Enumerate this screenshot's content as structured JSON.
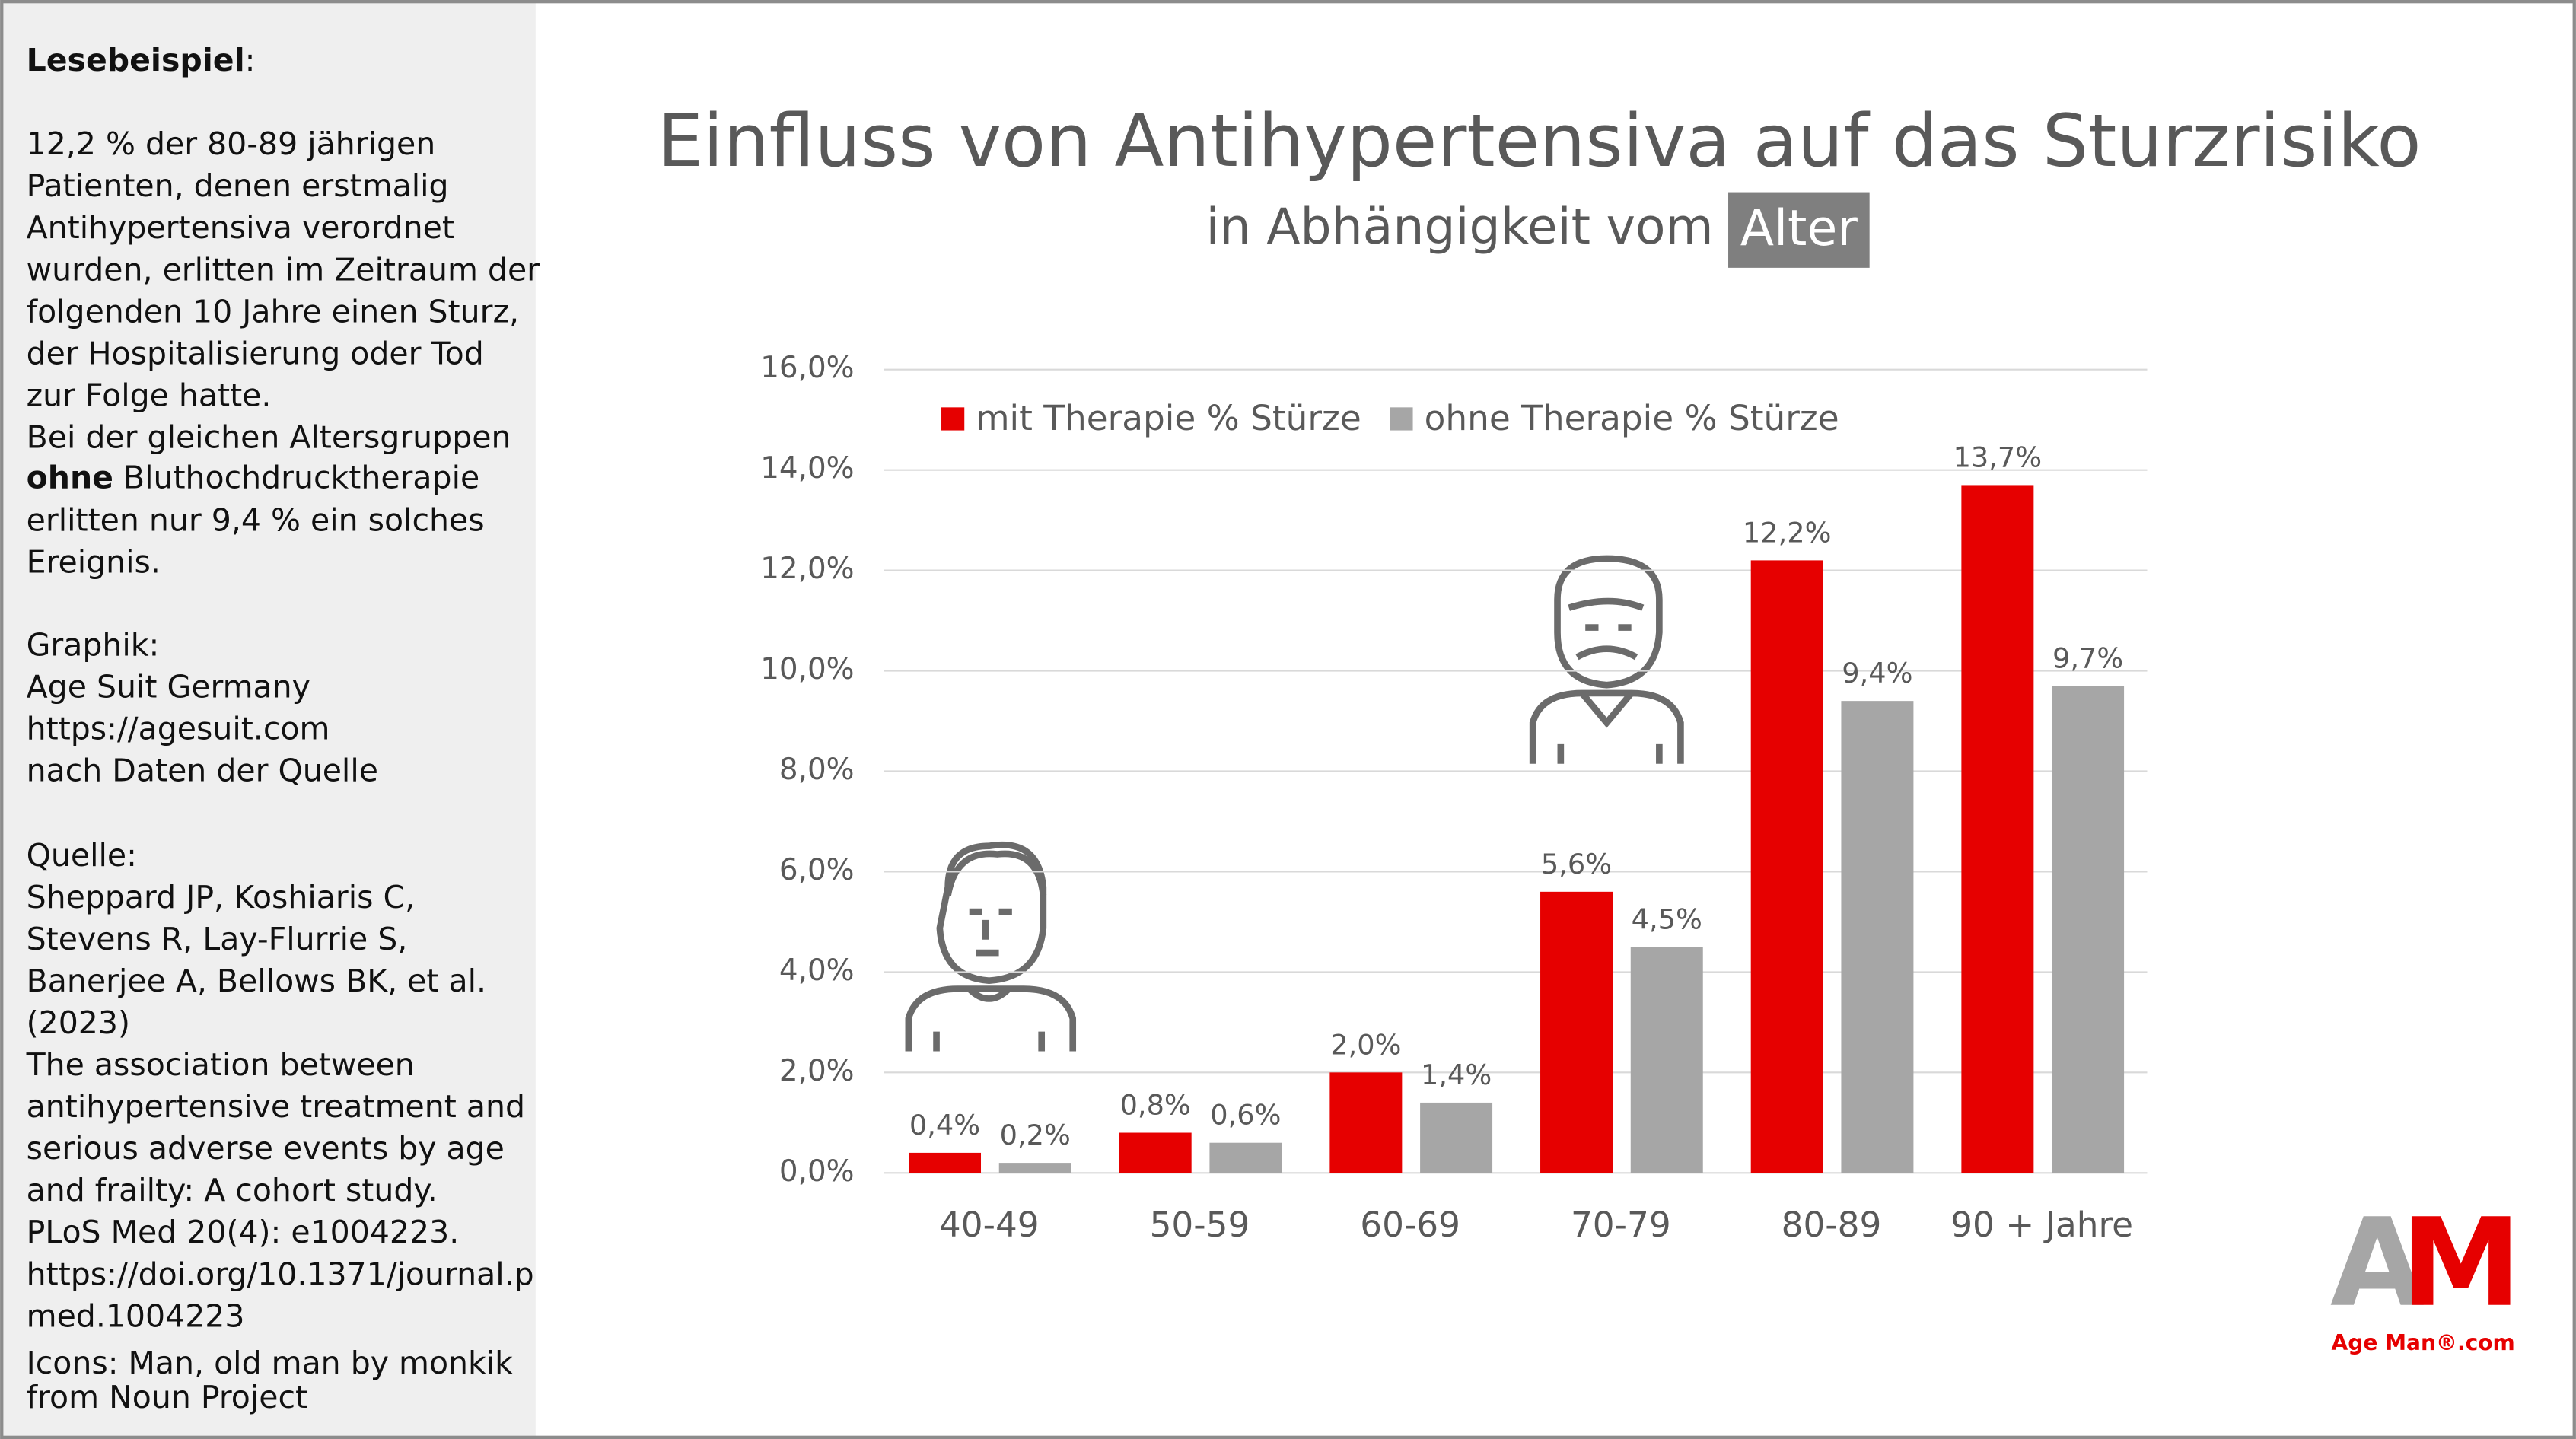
{
  "sidebar": {
    "label": "Lesebeispiel",
    "label_colon": ":",
    "example_lines": [
      "12,2 % der 80-89 jährigen",
      "Patienten, denen erstmalig",
      "Antihypertensiva verordnet",
      "wurden, erlitten im Zeitraum der",
      "folgenden 10 Jahre einen Sturz,",
      "der Hospitalisierung oder Tod",
      "zur Folge hatte.",
      "Bei der gleichen Altersgruppen"
    ],
    "emphasis": "ohne",
    "emphasis_rest": "Bluthochdrucktherapie",
    "example_lines_end": [
      "erlitten nur 9,4 % ein solches",
      "Ereignis."
    ],
    "graphic_lines": [
      "Graphik:",
      "Age Suit Germany",
      "https://agesuit.com",
      "nach Daten der Quelle"
    ],
    "source_lines": [
      "Quelle:",
      "Sheppard JP, Koshiaris C,",
      "Stevens R, Lay-Flurrie S,",
      "Banerjee A, Bellows BK, et al.",
      "(2023)",
      "The association between",
      "antihypertensive treatment and",
      "serious adverse events by age",
      "and frailty: A cohort study.",
      "PLoS Med 20(4): e1004223.",
      "https://doi.org/10.1371/journal.p",
      "med.1004223"
    ],
    "icon_credit_lines": [
      "Icons: Man, old man by monkik",
      "from Noun Project"
    ]
  },
  "logo": {
    "letter_a": "A",
    "letter_m": "M",
    "text": "Age Man®.com"
  },
  "chart_data": {
    "type": "bar",
    "title": "Einfluss von Antihypertensiva auf das Sturzrisiko",
    "subtitle": "in Abhängigkeit vom",
    "subtitle_highlight": "Alter",
    "categories": [
      "40-49",
      "50-59",
      "60-69",
      "70-79",
      "80-89",
      "90 +  Jahre"
    ],
    "series": [
      {
        "name": "mit Therapie % Stürze",
        "color": "#e60000",
        "values": [
          0.4,
          0.8,
          2.0,
          5.6,
          12.2,
          13.7
        ],
        "value_labels": [
          "0,4%",
          "0,8%",
          "2,0%",
          "5,6%",
          "12,2%",
          "13,7%"
        ]
      },
      {
        "name": "ohne Therapie % Stürze",
        "color": "#a6a6a6",
        "values": [
          0.2,
          0.6,
          1.4,
          4.5,
          9.4,
          9.7
        ],
        "value_labels": [
          "0,2%",
          "0,6%",
          "1,4%",
          "4,5%",
          "9,4%",
          "9,7%"
        ]
      }
    ],
    "ylim": [
      0,
      16
    ],
    "yticks": [
      {
        "value": 0,
        "label": "0,0%"
      },
      {
        "value": 2,
        "label": "2,0%"
      },
      {
        "value": 4,
        "label": "4,0%"
      },
      {
        "value": 6,
        "label": "6,0%"
      },
      {
        "value": 8,
        "label": "8,0%"
      },
      {
        "value": 10,
        "label": "10,0%"
      },
      {
        "value": 12,
        "label": "12,0%"
      },
      {
        "value": 14,
        "label": "14,0%"
      },
      {
        "value": 16,
        "label": "16,0%"
      }
    ],
    "grid": true,
    "legend": "top"
  }
}
